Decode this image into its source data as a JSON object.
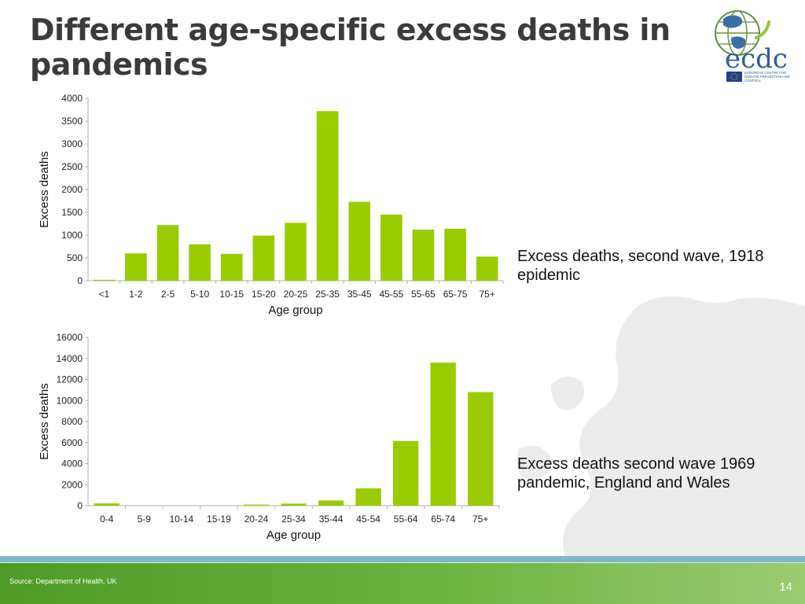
{
  "slide": {
    "title": "Different age-specific excess deaths in pandemics",
    "source": "Source: Department of Health, UK",
    "page_number": "14"
  },
  "logo": {
    "text": "ecdc",
    "subtext": "EUROPEAN CENTRE FOR DISEASE PREVENTION AND CONTROL"
  },
  "captions": [
    "Excess deaths, second wave, 1918 epidemic",
    "Excess deaths second wave 1969 pandemic, England and Wales"
  ],
  "colors": {
    "bar": "#99cc00",
    "axis": "#b0b0b0",
    "title": "#3b3b3b"
  },
  "chart_data": [
    {
      "type": "bar",
      "categories": [
        "<1",
        "1-2",
        "2-5",
        "5-10",
        "10-15",
        "15-20",
        "20-25",
        "25-35",
        "35-45",
        "45-55",
        "55-65",
        "65-75",
        "75+"
      ],
      "values": [
        20,
        600,
        1220,
        800,
        590,
        990,
        1270,
        3720,
        1730,
        1450,
        1120,
        1140,
        530
      ],
      "xlabel": "Age group",
      "ylabel": "Excess deaths",
      "ylim": [
        0,
        4000
      ],
      "yticks": [
        0,
        500,
        1000,
        1500,
        2000,
        2500,
        3000,
        3500,
        4000
      ],
      "grid": false,
      "legend": "none"
    },
    {
      "type": "bar",
      "categories": [
        "0-4",
        "5-9",
        "10-14",
        "15-19",
        "20-24",
        "25-34",
        "35-44",
        "45-54",
        "55-64",
        "65-74",
        "75+"
      ],
      "values": [
        220,
        0,
        0,
        0,
        100,
        200,
        500,
        1650,
        6150,
        13600,
        10800
      ],
      "xlabel": "Age group",
      "ylabel": "Excess deaths",
      "ylim": [
        0,
        16000
      ],
      "yticks": [
        0,
        2000,
        4000,
        6000,
        8000,
        10000,
        12000,
        14000,
        16000
      ],
      "grid": false,
      "legend": "none"
    }
  ]
}
